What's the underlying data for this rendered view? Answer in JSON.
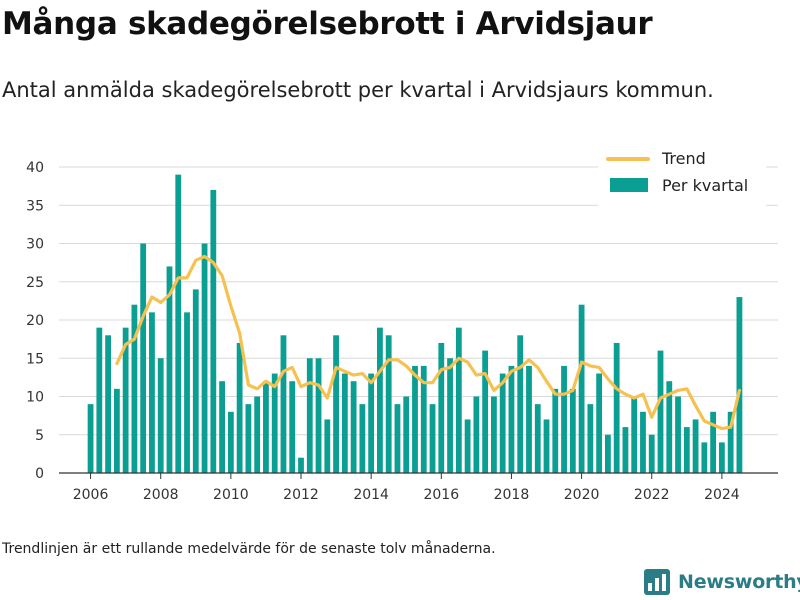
{
  "title": "Många skadegörelsebrott i Arvidsjaur",
  "subtitle": "Antal anmälda skadegörelsebrott per kvartal i Arvidsjaurs kommun.",
  "footnote": "Trendlinjen är ett rullande medelvärde för de senaste tolv månaderna.",
  "brand": "Newsworthy",
  "colors": {
    "bar": "#0b9e92",
    "trend": "#f5c150",
    "grid": "#d9d9d9",
    "axis": "#333333",
    "brand": "#2a7d86"
  },
  "chart_data": {
    "type": "bar",
    "x": [
      2006.0,
      2006.25,
      2006.5,
      2006.75,
      2007.0,
      2007.25,
      2007.5,
      2007.75,
      2008.0,
      2008.25,
      2008.5,
      2008.75,
      2009.0,
      2009.25,
      2009.5,
      2009.75,
      2010.0,
      2010.25,
      2010.5,
      2010.75,
      2011.0,
      2011.25,
      2011.5,
      2011.75,
      2012.0,
      2012.25,
      2012.5,
      2012.75,
      2013.0,
      2013.25,
      2013.5,
      2013.75,
      2014.0,
      2014.25,
      2014.5,
      2014.75,
      2015.0,
      2015.25,
      2015.5,
      2015.75,
      2016.0,
      2016.25,
      2016.5,
      2016.75,
      2017.0,
      2017.25,
      2017.5,
      2017.75,
      2018.0,
      2018.25,
      2018.5,
      2018.75,
      2019.0,
      2019.25,
      2019.5,
      2019.75,
      2020.0,
      2020.25,
      2020.5,
      2020.75,
      2021.0,
      2021.25,
      2021.5,
      2021.75,
      2022.0,
      2022.25,
      2022.5,
      2022.75,
      2023.0,
      2023.25,
      2023.5,
      2023.75,
      2024.0,
      2024.25,
      2024.5
    ],
    "series": [
      {
        "name": "Per kvartal",
        "type": "bar",
        "values": [
          9,
          19,
          18,
          11,
          19,
          22,
          30,
          21,
          15,
          27,
          39,
          21,
          24,
          30,
          37,
          12,
          8,
          17,
          9,
          10,
          12,
          13,
          18,
          12,
          2,
          15,
          15,
          7,
          18,
          13,
          12,
          9,
          13,
          19,
          18,
          9,
          10,
          14,
          14,
          9,
          17,
          15,
          19,
          7,
          10,
          16,
          10,
          13,
          14,
          18,
          14,
          9,
          7,
          11,
          14,
          11,
          22,
          9,
          13,
          5,
          17,
          6,
          10,
          8,
          5,
          16,
          12,
          10,
          6,
          7,
          4,
          8,
          4,
          8,
          23
        ]
      },
      {
        "name": "Trend",
        "type": "line",
        "values": [
          null,
          null,
          null,
          14.3,
          16.8,
          17.5,
          20.5,
          23.0,
          22.3,
          23.3,
          25.5,
          25.5,
          27.8,
          28.3,
          27.5,
          25.8,
          21.8,
          18.3,
          11.5,
          11.0,
          12.0,
          11.3,
          13.3,
          13.8,
          11.3,
          11.8,
          11.5,
          9.8,
          13.8,
          13.3,
          12.8,
          13.0,
          11.8,
          13.3,
          14.8,
          14.8,
          14.0,
          12.8,
          11.8,
          11.8,
          13.5,
          13.8,
          15.0,
          14.5,
          12.8,
          13.0,
          10.8,
          11.8,
          13.3,
          13.8,
          14.8,
          13.8,
          12.0,
          10.3,
          10.3,
          10.8,
          14.5,
          14.0,
          13.8,
          12.3,
          11.0,
          10.3,
          9.8,
          10.3,
          7.3,
          9.8,
          10.3,
          10.8,
          11.0,
          8.8,
          6.8,
          6.3,
          5.8,
          6.0,
          10.8
        ]
      }
    ],
    "xlim": [
      2005.1,
      2025.6
    ],
    "ylim": [
      0,
      42
    ],
    "xticks": [
      2006,
      2008,
      2010,
      2012,
      2014,
      2016,
      2018,
      2020,
      2022,
      2024
    ],
    "yticks": [
      0,
      5,
      10,
      15,
      20,
      25,
      30,
      35,
      40
    ],
    "grid": "horizontal",
    "legend": "top-right",
    "legend_entries": [
      "Trend",
      "Per kvartal"
    ],
    "title": "Många skadegörelsebrott i Arvidsjaur",
    "xlabel": "",
    "ylabel": ""
  }
}
